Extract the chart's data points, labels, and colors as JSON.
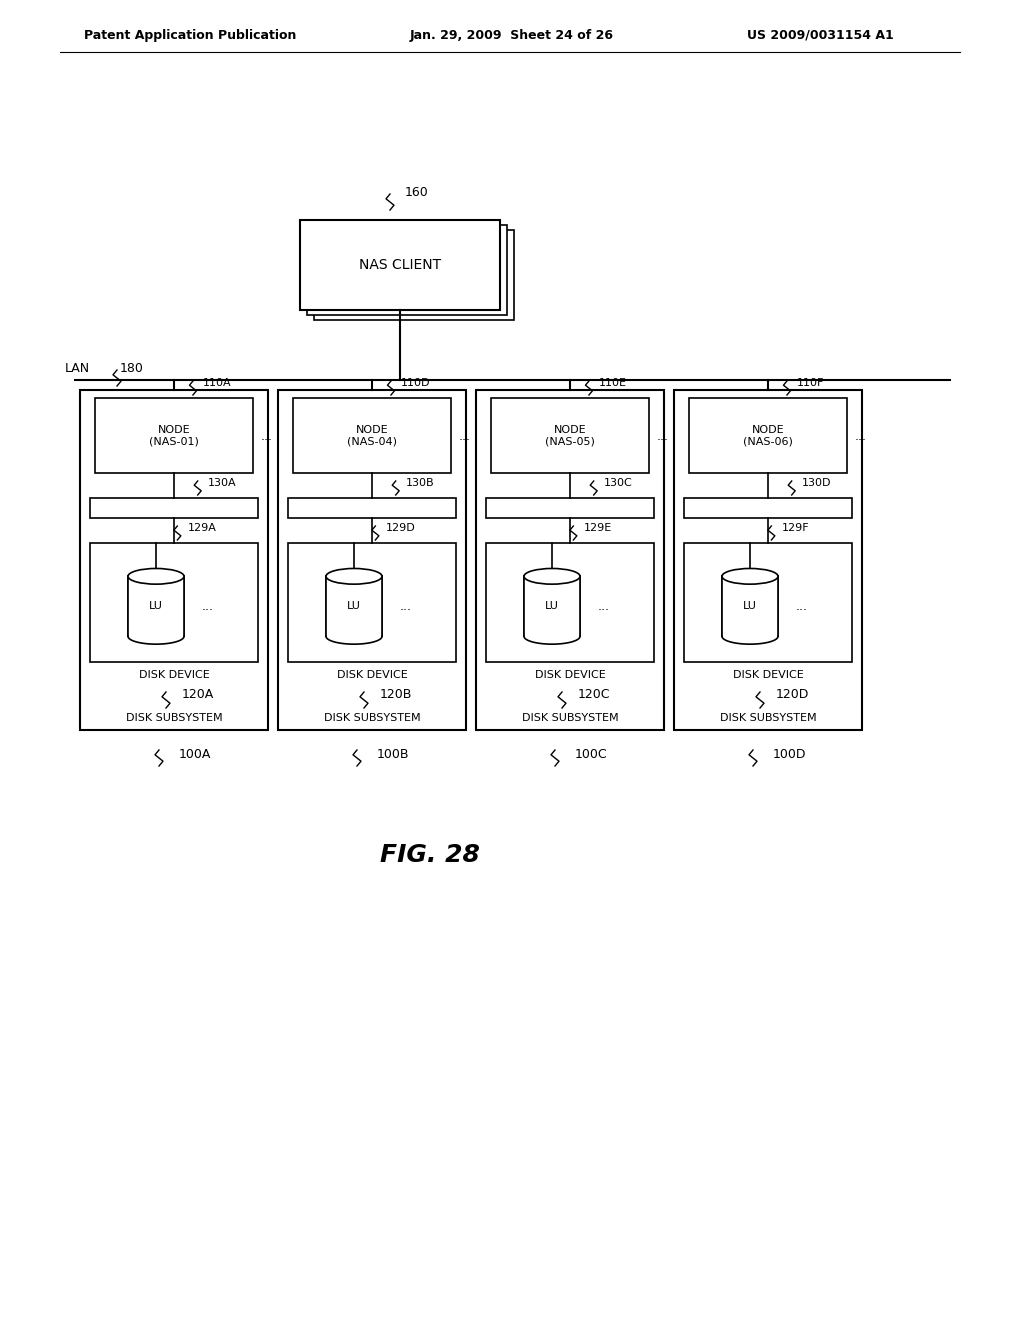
{
  "bg_color": "#ffffff",
  "header_left": "Patent Application Publication",
  "header_mid": "Jan. 29, 2009  Sheet 24 of 26",
  "header_right": "US 2009/0031154 A1",
  "fig_label": "FIG. 28",
  "nas_client_label": "NAS CLIENT",
  "nas_client_ref": "160",
  "lan_label": "LAN",
  "lan_ref": "180",
  "subsystems": [
    {
      "id": "A",
      "node_ref": "110A",
      "node_label": "NODE\n(NAS-01)",
      "cache_ref": "130A",
      "disk_ref": "129A",
      "disk_device_label": "DISK DEVICE",
      "disk_device_ref": "120A",
      "disk_sub_label": "DISK SUBSYSTEM",
      "disk_sub_ref": "100A"
    },
    {
      "id": "B",
      "node_ref": "110D",
      "node_label": "NODE\n(NAS-04)",
      "cache_ref": "130B",
      "disk_ref": "129D",
      "disk_device_label": "DISK DEVICE",
      "disk_device_ref": "120B",
      "disk_sub_label": "DISK SUBSYSTEM",
      "disk_sub_ref": "100B"
    },
    {
      "id": "C",
      "node_ref": "110E",
      "node_label": "NODE\n(NAS-05)",
      "cache_ref": "130C",
      "disk_ref": "129E",
      "disk_device_label": "DISK DEVICE",
      "disk_device_ref": "120C",
      "disk_sub_label": "DISK SUBSYSTEM",
      "disk_sub_ref": "100C"
    },
    {
      "id": "D",
      "node_ref": "110F",
      "node_label": "NODE\n(NAS-06)",
      "cache_ref": "130D",
      "disk_ref": "129F",
      "disk_device_label": "DISK DEVICE",
      "disk_device_ref": "120D",
      "disk_sub_label": "DISK SUBSYSTEM",
      "disk_sub_ref": "100D"
    }
  ]
}
